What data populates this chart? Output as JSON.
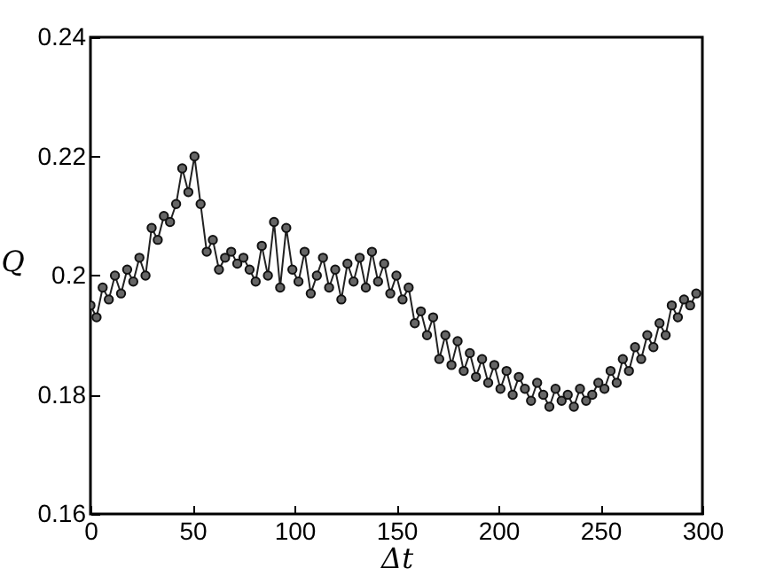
{
  "chart_data": {
    "type": "line",
    "xlabel": "Δt",
    "ylabel": "Q",
    "xlim": [
      0,
      300
    ],
    "ylim": [
      0.16,
      0.24
    ],
    "xticks": [
      0,
      50,
      100,
      150,
      200,
      250,
      300
    ],
    "yticks": [
      0.16,
      0.18,
      0.2,
      0.22,
      0.24
    ],
    "marker": "circle",
    "grid": false,
    "x": [
      0,
      3,
      6,
      9,
      12,
      15,
      18,
      21,
      24,
      27,
      30,
      33,
      36,
      39,
      42,
      45,
      48,
      51,
      54,
      57,
      60,
      63,
      66,
      69,
      72,
      75,
      78,
      81,
      84,
      87,
      90,
      93,
      96,
      99,
      102,
      105,
      108,
      111,
      114,
      117,
      120,
      123,
      126,
      129,
      132,
      135,
      138,
      141,
      144,
      147,
      150,
      153,
      156,
      159,
      162,
      165,
      168,
      171,
      174,
      177,
      180,
      183,
      186,
      189,
      192,
      195,
      198,
      201,
      204,
      207,
      210,
      213,
      216,
      219,
      222,
      225,
      228,
      231,
      234,
      237,
      240,
      243,
      246,
      249,
      252,
      255,
      258,
      261,
      264,
      267,
      270,
      273,
      276,
      279,
      282,
      285,
      288,
      291,
      294,
      297
    ],
    "series": [
      {
        "color": "#222222",
        "values": [
          0.195,
          0.193,
          0.198,
          0.196,
          0.2,
          0.197,
          0.201,
          0.199,
          0.203,
          0.2,
          0.208,
          0.206,
          0.21,
          0.209,
          0.212,
          0.218,
          0.214,
          0.22,
          0.212,
          0.204,
          0.206,
          0.201,
          0.203,
          0.204,
          0.202,
          0.203,
          0.201,
          0.199,
          0.205,
          0.2,
          0.209,
          0.198,
          0.208,
          0.201,
          0.199,
          0.204,
          0.197,
          0.2,
          0.203,
          0.198,
          0.201,
          0.196,
          0.202,
          0.199,
          0.203,
          0.198,
          0.204,
          0.199,
          0.202,
          0.197,
          0.2,
          0.196,
          0.198,
          0.192,
          0.194,
          0.19,
          0.193,
          0.186,
          0.19,
          0.185,
          0.189,
          0.184,
          0.187,
          0.183,
          0.186,
          0.182,
          0.185,
          0.181,
          0.184,
          0.18,
          0.183,
          0.181,
          0.179,
          0.182,
          0.18,
          0.178,
          0.181,
          0.179,
          0.18,
          0.178,
          0.181,
          0.179,
          0.18,
          0.182,
          0.181,
          0.184,
          0.182,
          0.186,
          0.184,
          0.188,
          0.186,
          0.19,
          0.188,
          0.192,
          0.19,
          0.195,
          0.193,
          0.196,
          0.195,
          0.197
        ]
      }
    ]
  }
}
